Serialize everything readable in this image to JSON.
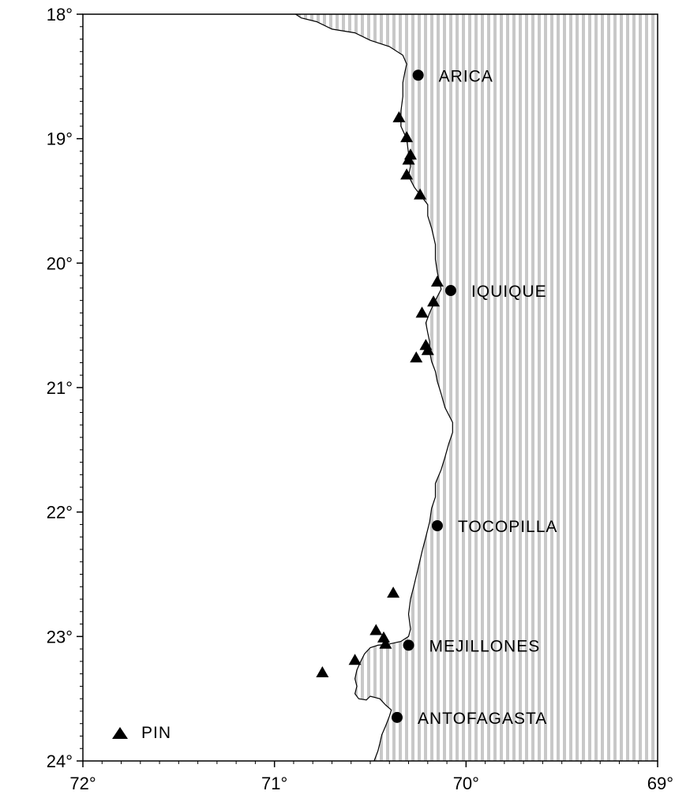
{
  "map": {
    "lon_range": [
      -72,
      -69
    ],
    "lat_range": [
      -24,
      -18
    ],
    "ocean_color": "#ffffff",
    "land_pattern": "dotted-grey",
    "land_color": "#c8c8c8",
    "coast_color": "#000000",
    "y_ticks": [
      {
        "lat": -18,
        "label": "18°"
      },
      {
        "lat": -19,
        "label": "19°"
      },
      {
        "lat": -20,
        "label": "20°"
      },
      {
        "lat": -21,
        "label": "21°"
      },
      {
        "lat": -22,
        "label": "22°"
      },
      {
        "lat": -23,
        "label": "23°"
      },
      {
        "lat": -24,
        "label": "24°"
      }
    ],
    "x_ticks": [
      {
        "lon": -72,
        "label": "72°"
      },
      {
        "lon": -71,
        "label": "71°"
      },
      {
        "lon": -70,
        "label": "70°"
      },
      {
        "lon": -69,
        "label": "69°"
      }
    ],
    "cities": [
      {
        "name": "ARICA",
        "lon": -70.25,
        "lat": -18.49
      },
      {
        "name": "IQUIQUE",
        "lon": -70.08,
        "lat": -20.22
      },
      {
        "name": "TOCOPILLA",
        "lon": -70.15,
        "lat": -22.11
      },
      {
        "name": "MEJILLONES",
        "lon": -70.3,
        "lat": -23.07
      },
      {
        "name": "ANTOFAGASTA",
        "lon": -70.36,
        "lat": -23.65
      }
    ],
    "stations": [
      {
        "lon": -70.35,
        "lat": -18.83
      },
      {
        "lon": -70.31,
        "lat": -18.99
      },
      {
        "lon": -70.29,
        "lat": -19.13
      },
      {
        "lon": -70.3,
        "lat": -19.17
      },
      {
        "lon": -70.31,
        "lat": -19.29
      },
      {
        "lon": -70.24,
        "lat": -19.45
      },
      {
        "lon": -70.15,
        "lat": -20.15
      },
      {
        "lon": -70.17,
        "lat": -20.31
      },
      {
        "lon": -70.23,
        "lat": -20.4
      },
      {
        "lon": -70.21,
        "lat": -20.66
      },
      {
        "lon": -70.2,
        "lat": -20.7
      },
      {
        "lon": -70.26,
        "lat": -20.76
      },
      {
        "lon": -70.38,
        "lat": -22.65
      },
      {
        "lon": -70.47,
        "lat": -22.95
      },
      {
        "lon": -70.43,
        "lat": -23.01
      },
      {
        "lon": -70.42,
        "lat": -23.06
      },
      {
        "lon": -70.58,
        "lat": -23.19
      },
      {
        "lon": -70.75,
        "lat": -23.29
      }
    ],
    "legend": {
      "label": "PIN",
      "symbol": "triangle"
    },
    "coastline": [
      [
        -70.89,
        -18.0
      ],
      [
        -70.86,
        -18.03
      ],
      [
        -70.78,
        -18.06
      ],
      [
        -70.7,
        -18.12
      ],
      [
        -70.58,
        -18.15
      ],
      [
        -70.5,
        -18.21
      ],
      [
        -70.4,
        -18.26
      ],
      [
        -70.33,
        -18.33
      ],
      [
        -70.31,
        -18.4
      ],
      [
        -70.32,
        -18.47
      ],
      [
        -70.33,
        -18.55
      ],
      [
        -70.33,
        -18.66
      ],
      [
        -70.34,
        -18.78
      ],
      [
        -70.34,
        -18.9
      ],
      [
        -70.31,
        -19.0
      ],
      [
        -70.3,
        -19.12
      ],
      [
        -70.29,
        -19.22
      ],
      [
        -70.3,
        -19.3
      ],
      [
        -70.27,
        -19.39
      ],
      [
        -70.23,
        -19.47
      ],
      [
        -70.2,
        -19.53
      ],
      [
        -70.2,
        -19.62
      ],
      [
        -70.18,
        -19.72
      ],
      [
        -70.16,
        -19.85
      ],
      [
        -70.16,
        -19.97
      ],
      [
        -70.15,
        -20.07
      ],
      [
        -70.14,
        -20.15
      ],
      [
        -70.13,
        -20.21
      ],
      [
        -70.15,
        -20.27
      ],
      [
        -70.17,
        -20.33
      ],
      [
        -70.19,
        -20.4
      ],
      [
        -70.21,
        -20.48
      ],
      [
        -70.2,
        -20.56
      ],
      [
        -70.19,
        -20.63
      ],
      [
        -70.19,
        -20.71
      ],
      [
        -70.18,
        -20.79
      ],
      [
        -70.16,
        -20.87
      ],
      [
        -70.15,
        -20.95
      ],
      [
        -70.13,
        -21.05
      ],
      [
        -70.11,
        -21.16
      ],
      [
        -70.07,
        -21.28
      ],
      [
        -70.07,
        -21.36
      ],
      [
        -70.09,
        -21.45
      ],
      [
        -70.11,
        -21.56
      ],
      [
        -70.13,
        -21.66
      ],
      [
        -70.16,
        -21.77
      ],
      [
        -70.16,
        -21.88
      ],
      [
        -70.18,
        -21.97
      ],
      [
        -70.19,
        -22.08
      ],
      [
        -70.21,
        -22.2
      ],
      [
        -70.23,
        -22.32
      ],
      [
        -70.25,
        -22.45
      ],
      [
        -70.27,
        -22.58
      ],
      [
        -70.29,
        -22.7
      ],
      [
        -70.3,
        -22.82
      ],
      [
        -70.29,
        -22.94
      ],
      [
        -70.3,
        -23.0
      ],
      [
        -70.34,
        -23.04
      ],
      [
        -70.4,
        -23.06
      ],
      [
        -70.46,
        -23.07
      ],
      [
        -70.5,
        -23.09
      ],
      [
        -70.53,
        -23.14
      ],
      [
        -70.55,
        -23.2
      ],
      [
        -70.57,
        -23.27
      ],
      [
        -70.58,
        -23.34
      ],
      [
        -70.57,
        -23.4
      ],
      [
        -70.58,
        -23.46
      ],
      [
        -70.56,
        -23.5
      ],
      [
        -70.52,
        -23.51
      ],
      [
        -70.5,
        -23.48
      ],
      [
        -70.45,
        -23.5
      ],
      [
        -70.42,
        -23.55
      ],
      [
        -70.39,
        -23.59
      ],
      [
        -70.4,
        -23.64
      ],
      [
        -70.42,
        -23.72
      ],
      [
        -70.44,
        -23.79
      ],
      [
        -70.45,
        -23.86
      ],
      [
        -70.46,
        -23.92
      ],
      [
        -70.48,
        -24.0
      ]
    ]
  }
}
